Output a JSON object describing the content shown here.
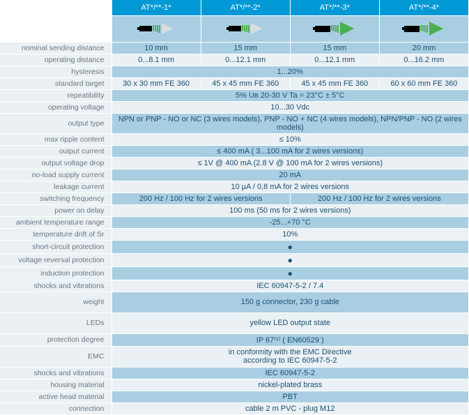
{
  "headers": [
    "AT*/**-1*",
    "AT*/**-2*",
    "AT*/**-3*",
    "AT*/**-4*"
  ],
  "sensor_icons": [
    {
      "body": "sm",
      "beam": "gray"
    },
    {
      "body": "sm",
      "beam": "gray"
    },
    {
      "body": "lg",
      "beam": "green"
    },
    {
      "body": "lg",
      "beam": "green"
    }
  ],
  "rows": [
    {
      "label": "nominal sending distance",
      "cells": [
        "10 mm",
        "15 mm",
        "15 mm",
        "20 mm"
      ],
      "cls": "even"
    },
    {
      "label": "operating distance",
      "cells": [
        "0...8.1 mm",
        "0...12.1 mm",
        "0...12.1 mm",
        "0...16.2 mm"
      ],
      "cls": "odd"
    },
    {
      "label": "hysteresis",
      "span": "1...20%",
      "cls": "even"
    },
    {
      "label": "standard target",
      "cells": [
        "30 x 30 mm FE 360",
        "45 x 45 mm FE 360",
        "45 x 45 mm FE 360",
        "60 x 60 mm FE 360"
      ],
      "cls": "odd"
    },
    {
      "label": "repeatibility",
      "span": "5% Uʙ 20-30 V Ta = 23°C ± 5°C",
      "cls": "even"
    },
    {
      "label": "operating voltage",
      "span": "10...30 Vdc",
      "cls": "odd"
    },
    {
      "label": "output type",
      "span": "NPN or PNP - NO or NC (3 wires models), PNP - NO + NC (4 wires models), NPN/PNP - NO (2 wires models)",
      "cls": "even"
    },
    {
      "label": "max ripple content",
      "span": "≤ 10%",
      "cls": "odd"
    },
    {
      "label": "output current",
      "span": "≤ 400 mA ( 3...100 mA for 2 wires versions)",
      "cls": "even"
    },
    {
      "label": "output voltage drop",
      "span": "≤ 1V @ 400 mA (2.8 V @ 100 mA for 2 wires versions)",
      "cls": "odd"
    },
    {
      "label": "no-load supply current",
      "span": "20 mA",
      "cls": "even"
    },
    {
      "label": "leakage current",
      "span": "10 µA / 0,8 mA for 2 wires versions",
      "cls": "odd"
    },
    {
      "label": "switching frequency",
      "cells2": [
        "200 Hz / 100 Hz for 2 wires versions",
        "200 Hz / 100 Hz for 2 wires versions"
      ],
      "cls": "even"
    },
    {
      "label": "power on delay",
      "span": "100 ms (50 ms for 2 wires versions)",
      "cls": "odd"
    },
    {
      "label": "ambient temperature range",
      "span": "-25...+70 °C",
      "cls": "even"
    },
    {
      "label": "temperature drift of Sr",
      "span": "10%",
      "cls": "odd"
    },
    {
      "label": "short-circuit protection",
      "span": "●",
      "cls": "even",
      "dot": true
    },
    {
      "label": "voltage reversal protection",
      "span": "●",
      "cls": "odd",
      "dot": true
    },
    {
      "label": "induction protection",
      "span": "●",
      "cls": "even",
      "dot": true
    },
    {
      "label": "shocks and vibrations",
      "span": "IEC 60947-5-2 / 7.4",
      "cls": "odd"
    },
    {
      "label": "weight",
      "span": "150 g connector, 230 g cable",
      "cls": "even",
      "tall": true
    },
    {
      "label": "LEDs",
      "span": "yellow LED output state",
      "cls": "odd",
      "tall": true
    },
    {
      "label": "protection degree",
      "span": "IP 67⁽¹⁾ ( EN60529 )",
      "cls": "even"
    },
    {
      "label": "EMC",
      "span": "in conformity with the EMC Directive\naccording to IEC 60947-5-2",
      "cls": "odd",
      "tall": true,
      "multi": true
    },
    {
      "label": "shocks and vibrations",
      "span": "IEC 60947-5-2",
      "cls": "even"
    },
    {
      "label": "housing material",
      "span": "nickel-plated brass",
      "cls": "odd"
    },
    {
      "label": "active head material",
      "span": "PBT",
      "cls": "even"
    },
    {
      "label": "connection",
      "span": "cable 2 m PVC - plug M12",
      "cls": "odd"
    }
  ]
}
